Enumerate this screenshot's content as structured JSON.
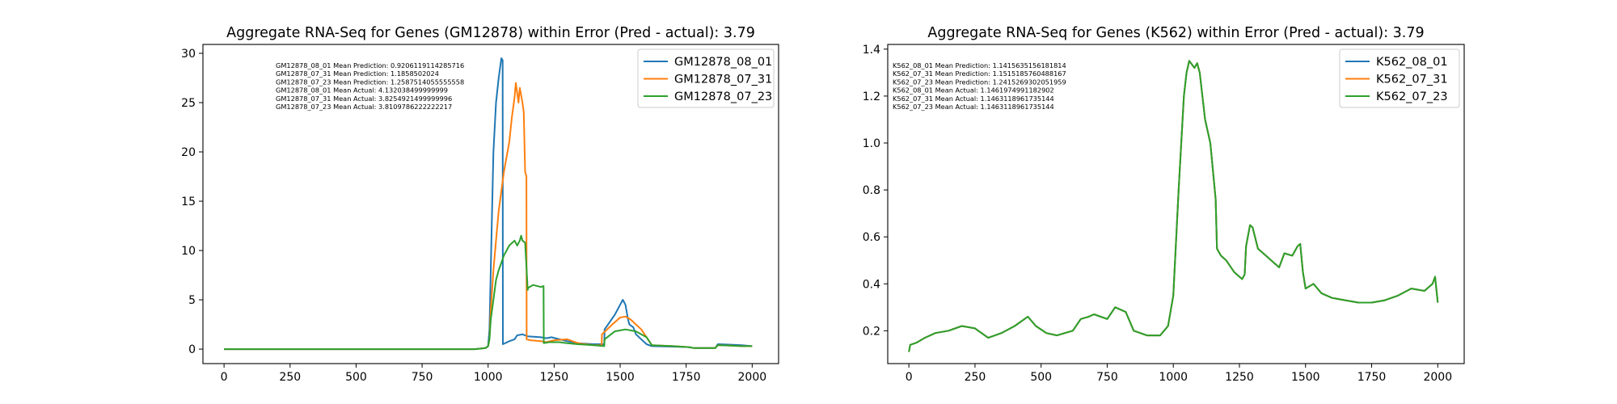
{
  "figure": {
    "background": "#ffffff"
  },
  "colors": {
    "blue": "#1f77b4",
    "orange": "#ff7f0e",
    "green": "#2ca02c"
  },
  "chart_data": [
    {
      "type": "line",
      "title": "Aggregate RNA-Seq for Genes (GM12878) within Error (Pred - actual): 3.79",
      "xlabel": "",
      "ylabel": "",
      "xlim": [
        -80,
        2100
      ],
      "ylim": [
        -1.47,
        30.9
      ],
      "xticks": [
        0,
        250,
        500,
        750,
        1000,
        1250,
        1500,
        1750,
        2000
      ],
      "yticks": [
        0,
        5,
        10,
        15,
        20,
        25,
        30
      ],
      "legend_position": "top-right",
      "annotation_lines": [
        "GM12878_08_01 Mean Prediction: 0.9206119114285716",
        "GM12878_07_31 Mean Prediction: 1.1858502024",
        "GM12878_07_23 Mean Prediction: 1.2587514055555558",
        "GM12878_08_01 Mean Actual: 4.132038499999999",
        "GM12878_07_31 Mean Actual: 3.8254921499999996",
        "GM12878_07_23 Mean Actual: 3.8109786222222217"
      ],
      "series": [
        {
          "name": "GM12878_08_01",
          "color": "#1f77b4",
          "x": [
            0,
            200,
            400,
            600,
            800,
            950,
            990,
            1000,
            1005,
            1010,
            1015,
            1020,
            1030,
            1040,
            1050,
            1055,
            1056,
            1080,
            1100,
            1110,
            1130,
            1150,
            1200,
            1220,
            1240,
            1270,
            1300,
            1340,
            1400,
            1440,
            1441,
            1480,
            1500,
            1510,
            1520,
            1530,
            1535,
            1550,
            1560,
            1600,
            1620,
            1700,
            1760,
            1780,
            1860,
            1870,
            1920,
            1960,
            2000
          ],
          "y": [
            0,
            0,
            0,
            0,
            0,
            0,
            0.1,
            0.3,
            2,
            8,
            14,
            20,
            25,
            27.5,
            29.5,
            29.3,
            0.5,
            0.8,
            1,
            1.4,
            1.5,
            1.3,
            1.2,
            1.1,
            1.2,
            1,
            0.8,
            0.6,
            0.5,
            0.5,
            2,
            3.5,
            4.5,
            5,
            4.5,
            3,
            2.5,
            2.2,
            1.5,
            0.5,
            0.3,
            0.25,
            0.2,
            0.1,
            0.1,
            0.5,
            0.45,
            0.4,
            0.3
          ]
        },
        {
          "name": "GM12878_07_31",
          "color": "#ff7f0e",
          "x": [
            0,
            200,
            400,
            600,
            800,
            950,
            990,
            1000,
            1005,
            1010,
            1020,
            1030,
            1040,
            1060,
            1080,
            1090,
            1100,
            1105,
            1110,
            1115,
            1120,
            1130,
            1135,
            1140,
            1145,
            1146,
            1160,
            1200,
            1220,
            1250,
            1300,
            1340,
            1400,
            1430,
            1431,
            1470,
            1500,
            1520,
            1540,
            1580,
            1610,
            1620,
            1700,
            1760,
            1780,
            1860,
            1870,
            1920,
            1960,
            2000
          ],
          "y": [
            0,
            0,
            0,
            0,
            0,
            0,
            0.1,
            0.3,
            1,
            4,
            8,
            11,
            14,
            18,
            21,
            23.5,
            25.5,
            27,
            26,
            25,
            26.5,
            25,
            24,
            18,
            17.5,
            1,
            0.9,
            0.8,
            0.7,
            0.9,
            1,
            0.6,
            0.4,
            0.4,
            1.5,
            2.5,
            3.2,
            3.3,
            3,
            2,
            0.8,
            0.4,
            0.3,
            0.2,
            0.1,
            0.1,
            0.4,
            0.35,
            0.3,
            0.3
          ]
        },
        {
          "name": "GM12878_07_23",
          "color": "#2ca02c",
          "x": [
            0,
            200,
            400,
            600,
            800,
            950,
            990,
            1000,
            1005,
            1010,
            1020,
            1030,
            1040,
            1060,
            1080,
            1100,
            1110,
            1120,
            1125,
            1130,
            1140,
            1150,
            1151,
            1170,
            1200,
            1210,
            1211,
            1230,
            1270,
            1300,
            1340,
            1400,
            1440,
            1441,
            1480,
            1520,
            1560,
            1600,
            1620,
            1700,
            1760,
            1780,
            1860,
            1870,
            1920,
            1960,
            2000
          ],
          "y": [
            0,
            0,
            0,
            0,
            0,
            0,
            0.1,
            0.3,
            1,
            3,
            5,
            7,
            8,
            9.5,
            10.5,
            11,
            10.5,
            11,
            11.5,
            11,
            10.8,
            6,
            6.2,
            6.5,
            6.3,
            6.4,
            0.6,
            0.7,
            0.7,
            0.6,
            0.5,
            0.4,
            0.3,
            1,
            1.8,
            2,
            1.8,
            1.2,
            0.4,
            0.3,
            0.2,
            0.1,
            0.1,
            0.4,
            0.35,
            0.3,
            0.3
          ]
        }
      ]
    },
    {
      "type": "line",
      "title": "Aggregate RNA-Seq for Genes (K562) within Error (Pred - actual): 3.79",
      "xlabel": "",
      "ylabel": "",
      "xlim": [
        -80,
        2100
      ],
      "ylim": [
        0.06,
        1.42
      ],
      "xticks": [
        0,
        250,
        500,
        750,
        1000,
        1250,
        1500,
        1750,
        2000
      ],
      "yticks": [
        0.2,
        0.4,
        0.6,
        0.8,
        1.0,
        1.2,
        1.4
      ],
      "legend_position": "top-right",
      "annotation_lines": [
        "K562_08_01 Mean Prediction: 1.1415635156181814",
        "K562_07_31 Mean Prediction: 1.1515185760488167",
        "K562_07_23 Mean Prediction: 1.2415269302051959",
        "K562_08_01 Mean Actual: 1.1461974991182902",
        "K562_07_31 Mean Actual: 1.1463118961735144",
        "K562_07_23 Mean Actual: 1.1463118961735144"
      ],
      "series": [
        {
          "name": "K562_08_01",
          "color": "#1f77b4",
          "x": [
            0,
            5,
            30,
            60,
            100,
            150,
            200,
            250,
            300,
            350,
            400,
            450,
            480,
            520,
            560,
            620,
            650,
            680,
            700,
            750,
            780,
            820,
            850,
            900,
            950,
            980,
            1000,
            1020,
            1040,
            1050,
            1060,
            1080,
            1090,
            1100,
            1120,
            1140,
            1160,
            1165,
            1180,
            1200,
            1230,
            1260,
            1270,
            1275,
            1290,
            1300,
            1320,
            1360,
            1380,
            1400,
            1420,
            1450,
            1470,
            1480,
            1490,
            1500,
            1530,
            1560,
            1600,
            1650,
            1700,
            1750,
            1800,
            1850,
            1900,
            1950,
            1980,
            1990,
            2000
          ],
          "y": [
            0.11,
            0.14,
            0.15,
            0.17,
            0.19,
            0.2,
            0.22,
            0.21,
            0.17,
            0.19,
            0.22,
            0.26,
            0.22,
            0.19,
            0.18,
            0.2,
            0.25,
            0.26,
            0.27,
            0.25,
            0.3,
            0.28,
            0.2,
            0.18,
            0.18,
            0.22,
            0.35,
            0.8,
            1.2,
            1.3,
            1.35,
            1.32,
            1.34,
            1.3,
            1.1,
            1.0,
            0.76,
            0.55,
            0.52,
            0.5,
            0.45,
            0.42,
            0.44,
            0.56,
            0.65,
            0.64,
            0.55,
            0.51,
            0.49,
            0.47,
            0.53,
            0.52,
            0.56,
            0.57,
            0.45,
            0.38,
            0.4,
            0.36,
            0.34,
            0.33,
            0.32,
            0.32,
            0.33,
            0.35,
            0.38,
            0.37,
            0.4,
            0.43,
            0.32
          ]
        },
        {
          "name": "K562_07_31",
          "color": "#ff7f0e",
          "x": [
            0,
            5,
            30,
            60,
            100,
            150,
            200,
            250,
            300,
            350,
            400,
            450,
            480,
            520,
            560,
            620,
            650,
            680,
            700,
            750,
            780,
            820,
            850,
            900,
            950,
            980,
            1000,
            1020,
            1040,
            1050,
            1060,
            1080,
            1090,
            1100,
            1120,
            1140,
            1160,
            1165,
            1180,
            1200,
            1230,
            1260,
            1270,
            1275,
            1290,
            1300,
            1320,
            1360,
            1380,
            1400,
            1420,
            1450,
            1470,
            1480,
            1490,
            1500,
            1530,
            1560,
            1600,
            1650,
            1700,
            1750,
            1800,
            1850,
            1900,
            1950,
            1980,
            1990,
            2000
          ],
          "y": [
            0.11,
            0.14,
            0.15,
            0.17,
            0.19,
            0.2,
            0.22,
            0.21,
            0.17,
            0.19,
            0.22,
            0.26,
            0.22,
            0.19,
            0.18,
            0.2,
            0.25,
            0.26,
            0.27,
            0.25,
            0.3,
            0.28,
            0.2,
            0.18,
            0.18,
            0.22,
            0.35,
            0.8,
            1.2,
            1.3,
            1.35,
            1.32,
            1.34,
            1.3,
            1.1,
            1.0,
            0.76,
            0.55,
            0.52,
            0.5,
            0.45,
            0.42,
            0.44,
            0.56,
            0.65,
            0.64,
            0.55,
            0.51,
            0.49,
            0.47,
            0.53,
            0.52,
            0.56,
            0.57,
            0.45,
            0.38,
            0.4,
            0.36,
            0.34,
            0.33,
            0.32,
            0.32,
            0.33,
            0.35,
            0.38,
            0.37,
            0.4,
            0.43,
            0.32
          ]
        },
        {
          "name": "K562_07_23",
          "color": "#2ca02c",
          "x": [
            0,
            5,
            30,
            60,
            100,
            150,
            200,
            250,
            300,
            350,
            400,
            450,
            480,
            520,
            560,
            620,
            650,
            680,
            700,
            750,
            780,
            820,
            850,
            900,
            950,
            980,
            1000,
            1020,
            1040,
            1050,
            1060,
            1080,
            1090,
            1100,
            1120,
            1140,
            1160,
            1165,
            1180,
            1200,
            1230,
            1260,
            1270,
            1275,
            1290,
            1300,
            1320,
            1360,
            1380,
            1400,
            1420,
            1450,
            1470,
            1480,
            1490,
            1500,
            1530,
            1560,
            1600,
            1650,
            1700,
            1750,
            1800,
            1850,
            1900,
            1950,
            1980,
            1990,
            2000
          ],
          "y": [
            0.11,
            0.14,
            0.15,
            0.17,
            0.19,
            0.2,
            0.22,
            0.21,
            0.17,
            0.19,
            0.22,
            0.26,
            0.22,
            0.19,
            0.18,
            0.2,
            0.25,
            0.26,
            0.27,
            0.25,
            0.3,
            0.28,
            0.2,
            0.18,
            0.18,
            0.22,
            0.35,
            0.8,
            1.2,
            1.3,
            1.35,
            1.32,
            1.34,
            1.3,
            1.1,
            1.0,
            0.76,
            0.55,
            0.52,
            0.5,
            0.45,
            0.42,
            0.44,
            0.56,
            0.65,
            0.64,
            0.55,
            0.51,
            0.49,
            0.47,
            0.53,
            0.52,
            0.56,
            0.57,
            0.45,
            0.38,
            0.4,
            0.36,
            0.34,
            0.33,
            0.32,
            0.32,
            0.33,
            0.35,
            0.38,
            0.37,
            0.4,
            0.43,
            0.32
          ]
        }
      ]
    }
  ]
}
